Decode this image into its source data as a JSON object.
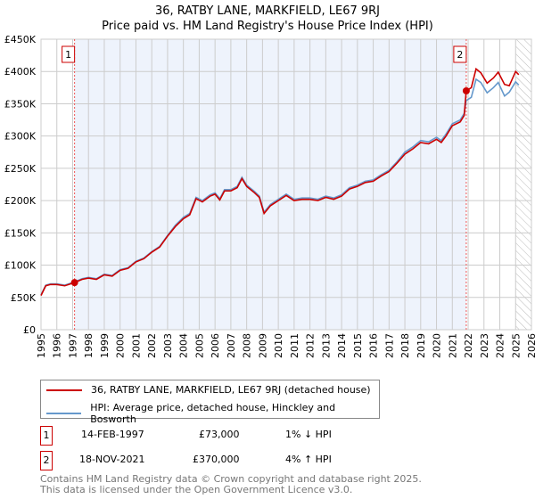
{
  "chart_data": {
    "type": "line",
    "title": "36, RATBY LANE, MARKFIELD, LE67 9RJ",
    "subtitle": "Price paid vs. HM Land Registry's House Price Index (HPI)",
    "xlim": [
      1995,
      2026
    ],
    "ylim": [
      0,
      450000
    ],
    "yticks": [
      0,
      50000,
      100000,
      150000,
      200000,
      250000,
      300000,
      350000,
      400000,
      450000
    ],
    "ytick_labels": [
      "£0",
      "£50K",
      "£100K",
      "£150K",
      "£200K",
      "£250K",
      "£300K",
      "£350K",
      "£400K",
      "£450K"
    ],
    "xticks": [
      "1995",
      "1996",
      "1997",
      "1998",
      "1999",
      "2000",
      "2001",
      "2002",
      "2003",
      "2004",
      "2005",
      "2006",
      "2007",
      "2008",
      "2009",
      "2010",
      "2011",
      "2012",
      "2013",
      "2014",
      "2015",
      "2016",
      "2017",
      "2018",
      "2019",
      "2020",
      "2021",
      "2022",
      "2023",
      "2024",
      "2025",
      "2026"
    ],
    "grid": true,
    "colors": {
      "property": "#cc0000",
      "hpi": "#6699cc",
      "band": "#eef3fc",
      "marker": "#cc0000"
    },
    "shaded_range": [
      1997.12,
      2021.88
    ],
    "forecast_hatch_from": 2025.0,
    "series": [
      {
        "name": "36, RATBY LANE, MARKFIELD, LE67 9RJ (detached house)",
        "points": [
          [
            1995,
            53000
          ],
          [
            1995.3,
            68000
          ],
          [
            1995.6,
            70000
          ],
          [
            1996,
            70000
          ],
          [
            1996.5,
            68000
          ],
          [
            1997.12,
            73000
          ],
          [
            1997.6,
            78000
          ],
          [
            1998,
            80000
          ],
          [
            1998.5,
            78000
          ],
          [
            1999,
            85000
          ],
          [
            1999.5,
            83000
          ],
          [
            2000,
            92000
          ],
          [
            2000.5,
            95000
          ],
          [
            2001,
            105000
          ],
          [
            2001.5,
            110000
          ],
          [
            2002,
            120000
          ],
          [
            2002.5,
            128000
          ],
          [
            2003,
            145000
          ],
          [
            2003.5,
            160000
          ],
          [
            2004,
            172000
          ],
          [
            2004.4,
            178000
          ],
          [
            2004.8,
            203000
          ],
          [
            2005.2,
            198000
          ],
          [
            2005.7,
            207000
          ],
          [
            2006,
            210000
          ],
          [
            2006.3,
            201000
          ],
          [
            2006.6,
            215000
          ],
          [
            2007,
            215000
          ],
          [
            2007.4,
            220000
          ],
          [
            2007.7,
            234000
          ],
          [
            2008,
            222000
          ],
          [
            2008.5,
            212000
          ],
          [
            2008.8,
            205000
          ],
          [
            2009.1,
            180000
          ],
          [
            2009.5,
            192000
          ],
          [
            2010,
            200000
          ],
          [
            2010.5,
            208000
          ],
          [
            2011,
            200000
          ],
          [
            2011.5,
            202000
          ],
          [
            2012,
            202000
          ],
          [
            2012.5,
            200000
          ],
          [
            2013,
            205000
          ],
          [
            2013.5,
            202000
          ],
          [
            2014,
            207000
          ],
          [
            2014.5,
            218000
          ],
          [
            2015,
            222000
          ],
          [
            2015.5,
            228000
          ],
          [
            2016,
            230000
          ],
          [
            2016.5,
            238000
          ],
          [
            2017,
            245000
          ],
          [
            2017.5,
            258000
          ],
          [
            2018,
            272000
          ],
          [
            2018.5,
            280000
          ],
          [
            2019,
            290000
          ],
          [
            2019.5,
            288000
          ],
          [
            2020,
            295000
          ],
          [
            2020.3,
            290000
          ],
          [
            2020.6,
            300000
          ],
          [
            2021,
            316000
          ],
          [
            2021.5,
            322000
          ],
          [
            2021.75,
            332000
          ],
          [
            2021.88,
            370000
          ],
          [
            2022.2,
            375000
          ],
          [
            2022.5,
            404000
          ],
          [
            2022.8,
            398000
          ],
          [
            2023.2,
            382000
          ],
          [
            2023.6,
            390000
          ],
          [
            2023.9,
            399000
          ],
          [
            2024.3,
            380000
          ],
          [
            2024.6,
            378000
          ],
          [
            2025,
            400000
          ],
          [
            2025.2,
            395000
          ]
        ]
      },
      {
        "name": "HPI: Average price, detached house, Hinckley and Bosworth",
        "points": [
          [
            1995,
            54000
          ],
          [
            1995.3,
            69000
          ],
          [
            1995.6,
            71000
          ],
          [
            1996,
            71000
          ],
          [
            1996.5,
            69000
          ],
          [
            1997.12,
            74000
          ],
          [
            1997.6,
            79000
          ],
          [
            1998,
            81000
          ],
          [
            1998.5,
            79000
          ],
          [
            1999,
            86000
          ],
          [
            1999.5,
            84000
          ],
          [
            2000,
            93000
          ],
          [
            2000.5,
            96000
          ],
          [
            2001,
            106000
          ],
          [
            2001.5,
            111000
          ],
          [
            2002,
            121000
          ],
          [
            2002.5,
            129000
          ],
          [
            2003,
            146000
          ],
          [
            2003.5,
            162000
          ],
          [
            2004,
            174000
          ],
          [
            2004.4,
            180000
          ],
          [
            2004.8,
            205000
          ],
          [
            2005.2,
            200000
          ],
          [
            2005.7,
            209000
          ],
          [
            2006,
            212000
          ],
          [
            2006.3,
            203000
          ],
          [
            2006.6,
            217000
          ],
          [
            2007,
            217000
          ],
          [
            2007.4,
            222000
          ],
          [
            2007.7,
            236000
          ],
          [
            2008,
            224000
          ],
          [
            2008.5,
            214000
          ],
          [
            2008.8,
            207000
          ],
          [
            2009.1,
            182000
          ],
          [
            2009.5,
            194000
          ],
          [
            2010,
            202000
          ],
          [
            2010.5,
            210000
          ],
          [
            2011,
            202000
          ],
          [
            2011.5,
            204000
          ],
          [
            2012,
            204000
          ],
          [
            2012.5,
            202000
          ],
          [
            2013,
            207000
          ],
          [
            2013.5,
            204000
          ],
          [
            2014,
            209000
          ],
          [
            2014.5,
            220000
          ],
          [
            2015,
            224000
          ],
          [
            2015.5,
            230000
          ],
          [
            2016,
            232000
          ],
          [
            2016.5,
            240000
          ],
          [
            2017,
            247000
          ],
          [
            2017.5,
            260000
          ],
          [
            2018,
            275000
          ],
          [
            2018.5,
            283000
          ],
          [
            2019,
            293000
          ],
          [
            2019.5,
            291000
          ],
          [
            2020,
            298000
          ],
          [
            2020.3,
            293000
          ],
          [
            2020.6,
            303000
          ],
          [
            2021,
            319000
          ],
          [
            2021.5,
            325000
          ],
          [
            2021.75,
            335000
          ],
          [
            2021.88,
            355000
          ],
          [
            2022.2,
            360000
          ],
          [
            2022.5,
            388000
          ],
          [
            2022.8,
            383000
          ],
          [
            2023.2,
            367000
          ],
          [
            2023.6,
            375000
          ],
          [
            2023.9,
            383000
          ],
          [
            2024.3,
            362000
          ],
          [
            2024.6,
            368000
          ],
          [
            2025,
            384000
          ],
          [
            2025.2,
            379000
          ]
        ]
      }
    ],
    "sales": [
      {
        "label": "1",
        "x": 1997.12,
        "y": 73000
      },
      {
        "label": "2",
        "x": 2021.88,
        "y": 370000
      }
    ]
  },
  "legend": {
    "property": "36, RATBY LANE, MARKFIELD, LE67 9RJ (detached house)",
    "hpi": "HPI: Average price, detached house, Hinckley and Bosworth"
  },
  "transactions": [
    {
      "num": "1",
      "date": "14-FEB-1997",
      "price": "£73,000",
      "hpi": "1% ↓ HPI"
    },
    {
      "num": "2",
      "date": "18-NOV-2021",
      "price": "£370,000",
      "hpi": "4% ↑ HPI"
    }
  ],
  "footer": {
    "line1": "Contains HM Land Registry data © Crown copyright and database right 2025.",
    "line2": "This data is licensed under the Open Government Licence v3.0."
  }
}
